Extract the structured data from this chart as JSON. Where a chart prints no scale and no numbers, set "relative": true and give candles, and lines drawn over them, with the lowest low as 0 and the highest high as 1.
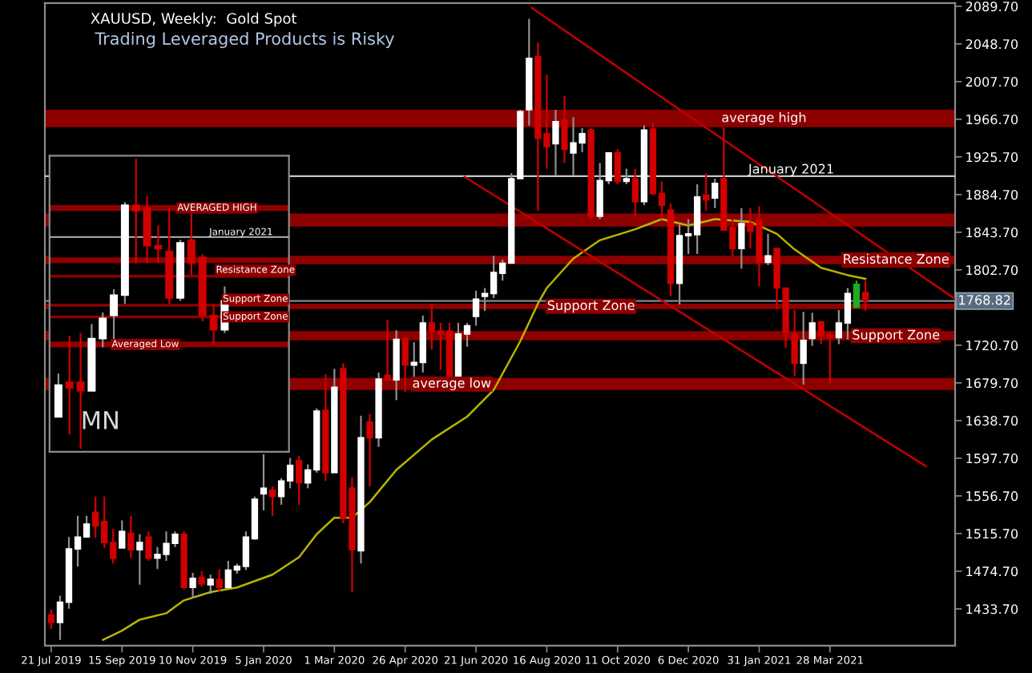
{
  "chart_data": [
    {
      "type": "candlestick",
      "title": "XAUUSD, Weekly:  Gold Spot",
      "subtitle": "Trading Leveraged Products is Risky",
      "x": [
        "2019-07-21",
        "2019-07-28",
        "2019-08-04",
        "2019-08-11",
        "2019-08-18",
        "2019-08-25",
        "2019-09-01",
        "2019-09-08",
        "2019-09-15",
        "2019-09-22",
        "2019-09-29",
        "2019-10-06",
        "2019-10-13",
        "2019-10-20",
        "2019-10-27",
        "2019-11-03",
        "2019-11-10",
        "2019-11-17",
        "2019-11-24",
        "2019-12-01",
        "2019-12-08",
        "2019-12-15",
        "2019-12-22",
        "2019-12-29",
        "2020-01-05",
        "2020-01-12",
        "2020-01-19",
        "2020-01-26",
        "2020-02-02",
        "2020-02-09",
        "2020-02-16",
        "2020-02-23",
        "2020-03-01",
        "2020-03-08",
        "2020-03-15",
        "2020-03-22",
        "2020-03-29",
        "2020-04-05",
        "2020-04-12",
        "2020-04-19",
        "2020-04-26",
        "2020-05-03",
        "2020-05-10",
        "2020-05-17",
        "2020-05-24",
        "2020-05-31",
        "2020-06-07",
        "2020-06-14",
        "2020-06-21",
        "2020-06-28",
        "2020-07-05",
        "2020-07-12",
        "2020-07-19",
        "2020-07-26",
        "2020-08-02",
        "2020-08-09",
        "2020-08-16",
        "2020-08-23",
        "2020-08-30",
        "2020-09-06",
        "2020-09-13",
        "2020-09-20",
        "2020-09-27",
        "2020-10-04",
        "2020-10-11",
        "2020-10-18",
        "2020-10-25",
        "2020-11-01",
        "2020-11-08",
        "2020-11-15",
        "2020-11-22",
        "2020-11-29",
        "2020-12-06",
        "2020-12-13",
        "2020-12-20",
        "2020-12-27",
        "2021-01-03",
        "2021-01-10",
        "2021-01-17",
        "2021-01-24",
        "2021-01-31",
        "2021-02-07",
        "2021-02-14",
        "2021-02-21",
        "2021-02-28",
        "2021-03-07",
        "2021-03-14",
        "2021-03-21",
        "2021-03-28",
        "2021-04-04",
        "2021-04-11",
        "2021-04-18",
        "2021-04-25"
      ],
      "ohlc": [
        [
          1427,
          1433,
          1412,
          1419
        ],
        [
          1419,
          1448,
          1400,
          1441
        ],
        [
          1441,
          1512,
          1434,
          1499
        ],
        [
          1499,
          1535,
          1480,
          1512
        ],
        [
          1512,
          1535,
          1511,
          1526
        ],
        [
          1539,
          1556,
          1511,
          1524
        ],
        [
          1529,
          1556,
          1500,
          1506
        ],
        [
          1506,
          1521,
          1483,
          1489
        ],
        [
          1500,
          1530,
          1500,
          1518
        ],
        [
          1516,
          1535,
          1489,
          1498
        ],
        [
          1498,
          1515,
          1460,
          1506
        ],
        [
          1512,
          1518,
          1486,
          1489
        ],
        [
          1489,
          1501,
          1477,
          1493
        ],
        [
          1493,
          1518,
          1486,
          1505
        ],
        [
          1505,
          1518,
          1501,
          1515
        ],
        [
          1515,
          1518,
          1455,
          1457
        ],
        [
          1457,
          1473,
          1445,
          1467
        ],
        [
          1468,
          1475,
          1458,
          1461
        ],
        [
          1460,
          1471,
          1450,
          1466
        ],
        [
          1466,
          1477,
          1452,
          1457
        ],
        [
          1457,
          1486,
          1456,
          1476
        ],
        [
          1476,
          1483,
          1472,
          1480
        ],
        [
          1480,
          1518,
          1476,
          1512
        ],
        [
          1510,
          1556,
          1509,
          1553
        ],
        [
          1559,
          1602,
          1541,
          1565
        ],
        [
          1563,
          1567,
          1535,
          1556
        ],
        [
          1556,
          1576,
          1547,
          1573
        ],
        [
          1573,
          1598,
          1565,
          1590
        ],
        [
          1595,
          1600,
          1547,
          1571
        ],
        [
          1571,
          1591,
          1565,
          1585
        ],
        [
          1585,
          1652,
          1582,
          1649
        ],
        [
          1650,
          1689,
          1573,
          1582
        ],
        [
          1582,
          1695,
          1582,
          1675
        ],
        [
          1695,
          1701,
          1527,
          1532
        ],
        [
          1565,
          1577,
          1452,
          1498
        ],
        [
          1497,
          1644,
          1483,
          1620
        ],
        [
          1637,
          1646,
          1567,
          1620
        ],
        [
          1620,
          1691,
          1610,
          1684
        ],
        [
          1688,
          1748,
          1681,
          1683
        ],
        [
          1683,
          1737,
          1661,
          1727
        ],
        [
          1728,
          1730,
          1670,
          1699
        ],
        [
          1699,
          1724,
          1683,
          1702
        ],
        [
          1702,
          1753,
          1691,
          1745
        ],
        [
          1745,
          1766,
          1716,
          1736
        ],
        [
          1736,
          1745,
          1694,
          1733
        ],
        [
          1736,
          1745,
          1671,
          1684
        ],
        [
          1684,
          1745,
          1684,
          1733
        ],
        [
          1733,
          1745,
          1719,
          1742
        ],
        [
          1752,
          1780,
          1742,
          1771
        ],
        [
          1774,
          1783,
          1758,
          1777
        ],
        [
          1777,
          1818,
          1772,
          1800
        ],
        [
          1799,
          1814,
          1791,
          1810
        ],
        [
          1810,
          1908,
          1810,
          1902
        ],
        [
          1902,
          1977,
          1902,
          1975
        ],
        [
          1977,
          2076,
          1960,
          2033
        ],
        [
          2035,
          2050,
          1867,
          1946
        ],
        [
          1951,
          2015,
          1913,
          1937
        ],
        [
          1940,
          1977,
          1905,
          1964
        ],
        [
          1966,
          1992,
          1919,
          1934
        ],
        [
          1930,
          1969,
          1905,
          1941
        ],
        [
          1941,
          1957,
          1931,
          1951
        ],
        [
          1955,
          1957,
          1858,
          1861
        ],
        [
          1861,
          1919,
          1858,
          1900
        ],
        [
          1900,
          1931,
          1896,
          1930
        ],
        [
          1930,
          1934,
          1896,
          1899
        ],
        [
          1899,
          1913,
          1896,
          1902
        ],
        [
          1902,
          1913,
          1861,
          1877
        ],
        [
          1877,
          1960,
          1873,
          1955
        ],
        [
          1956,
          1963,
          1884,
          1886
        ],
        [
          1886,
          1899,
          1858,
          1873
        ],
        [
          1868,
          1875,
          1774,
          1788
        ],
        [
          1788,
          1852,
          1765,
          1840
        ],
        [
          1840,
          1858,
          1820,
          1842
        ],
        [
          1841,
          1896,
          1820,
          1882
        ],
        [
          1884,
          1908,
          1867,
          1879
        ],
        [
          1881,
          1902,
          1870,
          1897
        ],
        [
          1902,
          1958,
          1846,
          1846
        ],
        [
          1849,
          1858,
          1817,
          1826
        ],
        [
          1826,
          1870,
          1804,
          1853
        ],
        [
          1853,
          1870,
          1826,
          1845
        ],
        [
          1857,
          1872,
          1785,
          1811
        ],
        [
          1811,
          1842,
          1808,
          1818
        ],
        [
          1826,
          1826,
          1760,
          1783
        ],
        [
          1783,
          1783,
          1718,
          1735
        ],
        [
          1733,
          1759,
          1687,
          1701
        ],
        [
          1701,
          1757,
          1678,
          1726
        ],
        [
          1728,
          1756,
          1720,
          1745
        ],
        [
          1746,
          1747,
          1722,
          1731
        ],
        [
          1732,
          1736,
          1679,
          1729
        ],
        [
          1729,
          1759,
          1722,
          1745
        ],
        [
          1745,
          1783,
          1727,
          1777
        ],
        [
          1762,
          1791,
          1762,
          1787
        ],
        [
          1778,
          1791,
          1758,
          1769
        ]
      ],
      "colors": [
        "#d00000",
        "#ffffff",
        "#ffffff",
        "#ffffff",
        "#ffffff",
        "#d00000",
        "#d00000",
        "#d00000",
        "#ffffff",
        "#d00000",
        "#ffffff",
        "#d00000",
        "#ffffff",
        "#ffffff",
        "#ffffff",
        "#d00000",
        "#ffffff",
        "#d00000",
        "#ffffff",
        "#d00000",
        "#ffffff",
        "#ffffff",
        "#ffffff",
        "#ffffff",
        "#ffffff",
        "#d00000",
        "#ffffff",
        "#ffffff",
        "#d00000",
        "#ffffff",
        "#ffffff",
        "#d00000",
        "#ffffff",
        "#d00000",
        "#d00000",
        "#ffffff",
        "#d00000",
        "#ffffff",
        "#d00000",
        "#ffffff",
        "#d00000",
        "#ffffff",
        "#ffffff",
        "#d00000",
        "#d00000",
        "#d00000",
        "#ffffff",
        "#ffffff",
        "#ffffff",
        "#ffffff",
        "#ffffff",
        "#ffffff",
        "#ffffff",
        "#ffffff",
        "#ffffff",
        "#d00000",
        "#d00000",
        "#ffffff",
        "#d00000",
        "#ffffff",
        "#ffffff",
        "#d00000",
        "#ffffff",
        "#ffffff",
        "#d00000",
        "#ffffff",
        "#d00000",
        "#ffffff",
        "#d00000",
        "#d00000",
        "#d00000",
        "#ffffff",
        "#ffffff",
        "#ffffff",
        "#d00000",
        "#ffffff",
        "#d00000",
        "#d00000",
        "#ffffff",
        "#d00000",
        "#d00000",
        "#ffffff",
        "#d00000",
        "#d00000",
        "#d00000",
        "#ffffff",
        "#ffffff",
        "#d00000",
        "#d00000",
        "#ffffff",
        "#ffffff",
        "#22aa22",
        "#d00000"
      ],
      "series": [
        {
          "type": "line",
          "color": "#b8b400",
          "x": [
            "2019-08-31",
            "2019-09-15",
            "2019-09-29",
            "2019-10-20",
            "2019-11-03",
            "2019-11-24",
            "2019-12-15",
            "2020-01-12",
            "2020-02-02",
            "2020-02-16",
            "2020-03-01",
            "2020-03-15",
            "2020-03-29",
            "2020-04-19",
            "2020-05-17",
            "2020-06-14",
            "2020-07-05",
            "2020-07-26",
            "2020-08-09",
            "2020-08-16",
            "2020-09-06",
            "2020-09-27",
            "2020-10-25",
            "2020-11-15",
            "2020-12-06",
            "2020-12-27",
            "2021-01-24",
            "2021-02-14",
            "2021-02-28",
            "2021-03-21",
            "2021-04-11",
            "2021-04-25"
          ],
          "values": [
            1400,
            1410,
            1422,
            1429,
            1443,
            1452,
            1457,
            1471,
            1490,
            1515,
            1533,
            1533,
            1550,
            1585,
            1618,
            1643,
            1672,
            1725,
            1766,
            1783,
            1815,
            1835,
            1847,
            1858,
            1851,
            1858,
            1855,
            1842,
            1825,
            1805,
            1797,
            1793
          ]
        },
        {
          "type": "line",
          "color": "#c00000",
          "x": [
            "2020-08-04",
            "2021-07-05"
          ],
          "values": [
            2088,
            1771
          ]
        },
        {
          "type": "line",
          "color": "#c00000",
          "x": [
            "2020-06-12",
            "2021-06-12"
          ],
          "values": [
            1904,
            1589
          ]
        }
      ],
      "bands": [
        {
          "axis": "y",
          "from": 1958,
          "to": 1977,
          "label": "average high",
          "color": "#8e0000"
        },
        {
          "axis": "y",
          "from": 1850,
          "to": 1864,
          "label": null,
          "color": "#8e0000"
        },
        {
          "axis": "y",
          "from": 1809,
          "to": 1818,
          "label": "Resistance Zone",
          "color": "#8e0000"
        },
        {
          "axis": "y",
          "from": 1760,
          "to": 1766,
          "label": "Support Zone",
          "color": "#8e0000"
        },
        {
          "axis": "y",
          "from": 1726,
          "to": 1736,
          "label": "Support Zone",
          "color": "#8e0000"
        },
        {
          "axis": "y",
          "from": 1672,
          "to": 1685,
          "label": "average low",
          "color": "#8e0000"
        }
      ],
      "ref_lines": [
        {
          "axis": "y",
          "value": 1904.7,
          "label": "January 2021",
          "color": "#c8c8c8"
        },
        {
          "axis": "y",
          "value": 1768.82,
          "label": "1768.82",
          "color": "#7a8a9a"
        }
      ],
      "xlim": [
        "2019-07-16",
        "2021-07-05"
      ],
      "xticks": [
        {
          "value": "2019-07-21",
          "label": "21 Jul 2019"
        },
        {
          "value": "2019-09-15",
          "label": "15 Sep 2019"
        },
        {
          "value": "2019-11-10",
          "label": "10 Nov 2019"
        },
        {
          "value": "2020-01-05",
          "label": "5 Jan 2020"
        },
        {
          "value": "2020-03-01",
          "label": "1 Mar 2020"
        },
        {
          "value": "2020-04-26",
          "label": "26 Apr 2020"
        },
        {
          "value": "2020-06-21",
          "label": "21 Jun 2020"
        },
        {
          "value": "2020-08-16",
          "label": "16 Aug 2020"
        },
        {
          "value": "2020-10-11",
          "label": "11 Oct 2020"
        },
        {
          "value": "2020-12-06",
          "label": "6 Dec 2020"
        },
        {
          "value": "2021-01-31",
          "label": "31 Jan 2021"
        },
        {
          "value": "2021-03-28",
          "label": "28 Mar 2021"
        }
      ],
      "ylim": [
        1393.6,
        2093.2
      ],
      "yticks": [
        {
          "value": 2089.7,
          "label": "2089.70"
        },
        {
          "value": 2048.7,
          "label": "2048.70"
        },
        {
          "value": 2007.7,
          "label": "2007.70"
        },
        {
          "value": 1966.7,
          "label": "1966.70"
        },
        {
          "value": 1925.7,
          "label": "1925.70"
        },
        {
          "value": 1884.7,
          "label": "1884.70"
        },
        {
          "value": 1843.7,
          "label": "1843.70"
        },
        {
          "value": 1802.7,
          "label": "1802.70"
        },
        {
          "value": 1720.7,
          "label": "1720.70"
        },
        {
          "value": 1679.7,
          "label": "1679.70"
        },
        {
          "value": 1638.7,
          "label": "1638.70"
        },
        {
          "value": 1597.7,
          "label": "1597.70"
        },
        {
          "value": 1556.7,
          "label": "1556.70"
        },
        {
          "value": 1515.7,
          "label": "1515.70"
        },
        {
          "value": 1474.7,
          "label": "1474.70"
        },
        {
          "value": 1433.7,
          "label": "1433.70"
        }
      ],
      "grid": false
    },
    {
      "type": "candlestick",
      "relative": true,
      "categories": [
        null,
        null,
        null,
        null,
        null,
        null,
        null,
        null,
        null,
        null,
        null,
        null,
        null,
        null,
        null,
        null
      ],
      "ohlc": [
        [
          0.11,
          0.26,
          0.11,
          0.22
        ],
        [
          0.23,
          0.39,
          0.05,
          0.21
        ],
        [
          0.23,
          0.4,
          0,
          0.2
        ],
        [
          0.2,
          0.43,
          0.2,
          0.38
        ],
        [
          0.38,
          0.47,
          0.35,
          0.45
        ],
        [
          0.46,
          0.55,
          0.36,
          0.53
        ],
        [
          0.53,
          0.85,
          0.5,
          0.84
        ],
        [
          0.84,
          1,
          0.64,
          0.82
        ],
        [
          0.83,
          0.87,
          0.64,
          0.7
        ],
        [
          0.7,
          0.77,
          0.64,
          0.69
        ],
        [
          0.68,
          0.83,
          0.5,
          0.52
        ],
        [
          0.52,
          0.72,
          0.51,
          0.71
        ],
        [
          0.72,
          0.82,
          0.6,
          0.64
        ],
        [
          0.66,
          0.67,
          0.44,
          0.46
        ],
        [
          0.46,
          0.5,
          0.36,
          0.41
        ],
        [
          0.41,
          0.56,
          0.4,
          0.51
        ]
      ],
      "colors": [
        "#ffffff",
        "#d00000",
        "#d00000",
        "#ffffff",
        "#ffffff",
        "#ffffff",
        "#ffffff",
        "#d00000",
        "#d00000",
        "#d00000",
        "#d00000",
        "#ffffff",
        "#d00000",
        "#d00000",
        "#d00000",
        "#ffffff"
      ],
      "bands": [
        {
          "axis": "y",
          "from": 0.82,
          "to": 0.84,
          "label": "AVERAGED HIGH",
          "color": "#8e0000"
        },
        {
          "axis": "y",
          "from": 0.64,
          "to": 0.66,
          "label": null,
          "color": "#8e0000"
        },
        {
          "axis": "y",
          "from": 0.59,
          "to": 0.6,
          "label": "Resistance Zone",
          "color": "#8e0000"
        },
        {
          "axis": "y",
          "from": 0.49,
          "to": 0.5,
          "label": "Support Zone",
          "color": "#8e0000"
        },
        {
          "axis": "y",
          "from": 0.45,
          "to": 0.46,
          "label": "Support Zone",
          "color": "#8e0000"
        },
        {
          "axis": "y",
          "from": 0.35,
          "to": 0.37,
          "label": "Averaged Low",
          "color": "#8e0000"
        }
      ],
      "ref_lines": [
        {
          "axis": "y",
          "value": 0.73,
          "label": "January 2021",
          "color": "#a0a0a0"
        }
      ],
      "annotations": [
        "MN"
      ]
    }
  ]
}
